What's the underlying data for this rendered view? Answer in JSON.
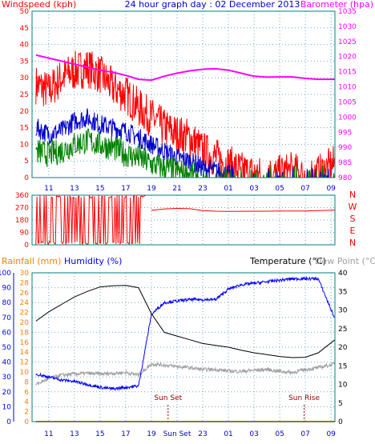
{
  "header": {
    "left": "Windspeed (kph)",
    "center": "24 hour graph day : 02 December 2013",
    "right": "Barometer (hpa)"
  },
  "colors": {
    "gust": "#ff0000",
    "wind_avg": "#0000cc",
    "wind_min": "#008000",
    "barometer": "#ff00ff",
    "rainfall": "#ff8000",
    "humidity": "#0000ff",
    "temperature": "#000000",
    "dewpoint": "#a0a0a0",
    "frame": "#008080",
    "grid": "#6fa8c8",
    "sun_marker": "#a00000"
  },
  "time_ticks": [
    "11",
    "13",
    "15",
    "17",
    "19",
    "21",
    "23",
    "01",
    "03",
    "05",
    "07",
    "09"
  ],
  "time_ticks_bottom": [
    "11",
    "13",
    "15",
    "17",
    "19",
    "Sun Set",
    "23",
    "01",
    "03",
    "05",
    "07",
    "09"
  ],
  "chart_data": [
    {
      "type": "line",
      "title": "24 hour graph day : 02 December 2013",
      "xlabel": "",
      "ylabel": "Windspeed (kph)",
      "y2label": "Barometer (hpa)",
      "x_hours": [
        10,
        11,
        12,
        13,
        14,
        15,
        16,
        17,
        18,
        19,
        20,
        21,
        22,
        23,
        24,
        25,
        26,
        27,
        28,
        29,
        30,
        31,
        32,
        33.3
      ],
      "ylim": [
        0,
        50
      ],
      "y_ticks": [
        0,
        5,
        10,
        15,
        20,
        25,
        30,
        35,
        40,
        45,
        50
      ],
      "y2lim": [
        980,
        1035
      ],
      "y2_ticks": [
        980,
        985,
        990,
        995,
        1000,
        1005,
        1010,
        1015,
        1020,
        1025,
        1030,
        1035
      ],
      "grid": true,
      "series": [
        {
          "name": "gust",
          "values": [
            28,
            26,
            30,
            32,
            33,
            31,
            27,
            25,
            21,
            18,
            15,
            13,
            12,
            8,
            6,
            4,
            2,
            1,
            0,
            1,
            2,
            0,
            1,
            4
          ]
        },
        {
          "name": "wind_avg",
          "values": [
            15,
            13,
            14,
            17,
            18,
            16,
            15,
            14,
            12,
            10,
            8,
            6,
            5,
            3,
            2,
            1,
            0,
            0,
            0,
            0,
            0,
            0,
            0,
            0
          ]
        },
        {
          "name": "wind_min",
          "values": [
            8,
            7,
            8,
            10,
            11,
            10,
            9,
            7,
            6,
            4,
            3,
            2,
            1,
            0,
            0,
            0,
            0,
            0,
            0,
            0,
            0,
            0,
            0,
            0
          ]
        },
        {
          "name": "barometer",
          "axis": "right",
          "values": [
            1020.5,
            1019.5,
            1018.5,
            1017.5,
            1016.5,
            1015.5,
            1014.8,
            1013.8,
            1012.5,
            1012.2,
            1013.5,
            1014.5,
            1015.3,
            1015.8,
            1016.0,
            1015.5,
            1014.5,
            1013.5,
            1013.2,
            1013.3,
            1013.3,
            1012.8,
            1012.5,
            1012.5
          ]
        }
      ]
    },
    {
      "type": "line",
      "ylabel": "Wind direction",
      "ylim": [
        0,
        360
      ],
      "y_ticks": [
        0,
        90,
        180,
        270,
        360
      ],
      "right_labels": [
        "N",
        "W",
        "S",
        "E",
        "N"
      ],
      "x_hours": [
        10,
        11,
        12,
        13,
        14,
        15,
        16,
        17,
        18,
        18.5,
        19,
        20,
        21,
        22,
        23,
        24,
        25,
        26,
        27,
        28,
        29,
        30,
        31,
        32,
        33.3
      ],
      "series": [
        {
          "name": "direction",
          "values": [
            200,
            340,
            30,
            350,
            20,
            330,
            10,
            345,
            30,
            350,
            250,
            260,
            265,
            262,
            248,
            244,
            242,
            243,
            244,
            244,
            245,
            245,
            245,
            248,
            252
          ]
        }
      ]
    },
    {
      "type": "line",
      "ylabel": "Rainfall (mm) / Humidity (%)",
      "legend": [
        "Rainfall (mm)",
        "Humidity (%)",
        "Temperature (°C)",
        "Dew Point (°C)"
      ],
      "ylim_humidity": [
        0,
        100
      ],
      "y_ticks_humidity": [
        0,
        10,
        20,
        30,
        40,
        50,
        60,
        70,
        80,
        90,
        100
      ],
      "ylim_rainfall": [
        0,
        30
      ],
      "y_ticks_rainfall": [
        0,
        2,
        4,
        6,
        8,
        10,
        12,
        14,
        16,
        18,
        20,
        22,
        24,
        26,
        28,
        30
      ],
      "y2lim_temperature": [
        0,
        40
      ],
      "y2_ticks_temperature": [
        0,
        5,
        10,
        15,
        20,
        25,
        30,
        35,
        40
      ],
      "x_hours": [
        10,
        11,
        12,
        13,
        14,
        15,
        16,
        17,
        18,
        19,
        20,
        21,
        22,
        23,
        24,
        25,
        26,
        27,
        28,
        29,
        30,
        31,
        32,
        33.3
      ],
      "annotations": [
        "Sun Set",
        "Sun Rise"
      ],
      "series": [
        {
          "name": "temperature",
          "axis": "right",
          "values": [
            27,
            29.5,
            31.5,
            33.5,
            35,
            36.2,
            36.5,
            36.6,
            36,
            29,
            24,
            23,
            22,
            21,
            20.5,
            20,
            19.2,
            18.5,
            18,
            17.5,
            17.2,
            17.3,
            18.5,
            22
          ]
        },
        {
          "name": "humidity",
          "values": [
            32,
            30,
            28,
            27,
            25,
            23,
            22,
            23,
            24,
            72,
            80,
            81,
            82,
            82,
            82,
            89,
            92,
            93,
            94,
            95,
            96,
            96,
            96,
            69
          ]
        },
        {
          "name": "dewpoint",
          "axis": "right",
          "values": [
            10,
            11.5,
            12.5,
            12.8,
            13,
            12.8,
            13,
            13.2,
            12.5,
            15.5,
            15.2,
            14.8,
            14.5,
            14,
            14,
            13.6,
            13.5,
            13.8,
            14,
            13.5,
            13.2,
            14,
            14.5,
            15.5
          ]
        },
        {
          "name": "rainfall",
          "values": [
            0,
            0,
            0,
            0,
            0,
            0,
            0,
            0,
            0,
            0,
            0,
            0,
            0,
            0,
            0,
            0,
            0,
            0,
            0,
            0,
            0,
            0,
            0,
            0
          ]
        }
      ]
    }
  ]
}
